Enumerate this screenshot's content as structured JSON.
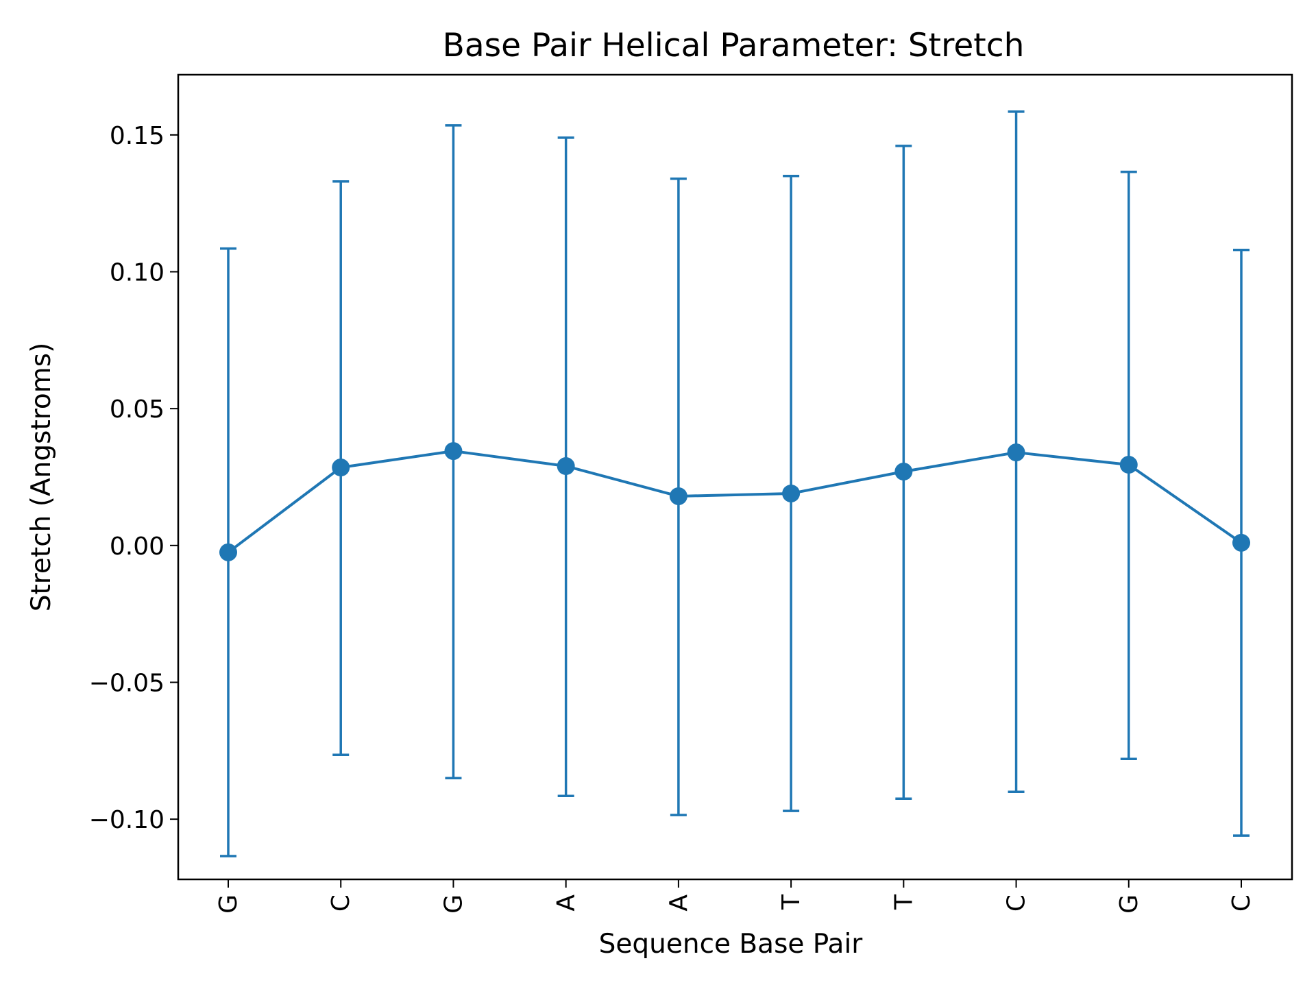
{
  "chart_data": {
    "type": "line",
    "title": "Base Pair  Helical Parameter: Stretch",
    "xlabel": "Sequence Base Pair",
    "ylabel": "Stretch (Angstroms)",
    "categories": [
      "G",
      "C",
      "G",
      "A",
      "A",
      "T",
      "T",
      "C",
      "G",
      "C"
    ],
    "ylim": [
      -0.122,
      0.172
    ],
    "yticks": [
      -0.1,
      -0.05,
      0.0,
      0.05,
      0.1,
      0.15
    ],
    "ytick_labels": [
      "−0.10",
      "−0.05",
      "0.00",
      "0.05",
      "0.10",
      "0.15"
    ],
    "grid": false,
    "legend": "none",
    "series": [
      {
        "color": "#1f77b4",
        "marker": "circle",
        "values": [
          -0.0025,
          0.0285,
          0.0345,
          0.029,
          0.018,
          0.019,
          0.027,
          0.034,
          0.0295,
          0.001
        ],
        "error_upper": [
          0.1085,
          0.133,
          0.1535,
          0.149,
          0.134,
          0.135,
          0.146,
          0.1585,
          0.1365,
          0.108
        ],
        "error_lower": [
          -0.1135,
          -0.0765,
          -0.085,
          -0.0915,
          -0.0985,
          -0.097,
          -0.0925,
          -0.09,
          -0.078,
          -0.106
        ]
      }
    ]
  }
}
